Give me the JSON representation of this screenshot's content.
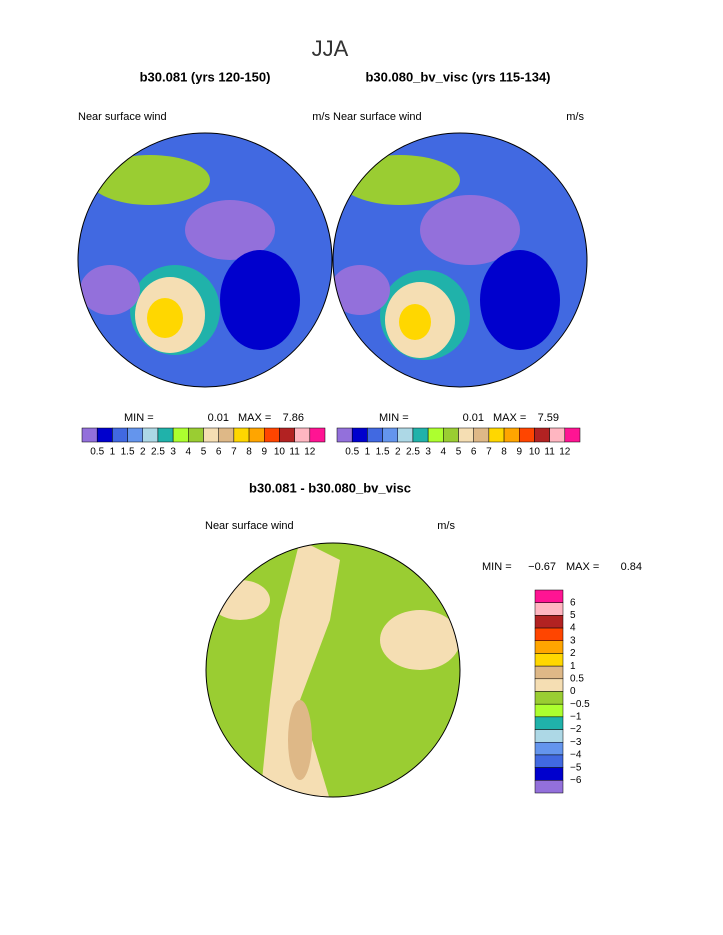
{
  "title": "JJA",
  "panels": [
    {
      "title": "b30.081 (yrs 120-150)",
      "left_label": "Near surface wind",
      "right_label": "m/s",
      "min_label": "MIN =",
      "min": "0.01",
      "max_label": "MAX =",
      "max": "7.86"
    },
    {
      "title": "b30.080_bv_visc (yrs 115-134)",
      "left_label": "Near surface wind",
      "right_label": "m/s",
      "min_label": "MIN =",
      "min": "0.01",
      "max_label": "MAX =",
      "max": "7.59"
    }
  ],
  "colorbar": {
    "labels": [
      "0.5",
      "1",
      "1.5",
      "2",
      "2.5",
      "3",
      "4",
      "5",
      "6",
      "7",
      "8",
      "9",
      "10",
      "11",
      "12"
    ],
    "colors": [
      "#9370db",
      "#0000cd",
      "#4169e1",
      "#6495ed",
      "#add8e6",
      "#20b2aa",
      "#adff2f",
      "#9acd32",
      "#f5deb3",
      "#deb887",
      "#ffd700",
      "#ffa500",
      "#ff4500",
      "#b22222",
      "#ffb6c1",
      "#ff1493"
    ]
  },
  "diff": {
    "title": "b30.081 - b30.080_bv_visc",
    "left_label": "Near surface wind",
    "right_label": "m/s",
    "min_label": "MIN =",
    "min": "−0.67",
    "max_label": "MAX =",
    "max": "0.84",
    "colorbar": {
      "labels": [
        "6",
        "5",
        "4",
        "3",
        "2",
        "1",
        "0.5",
        "0",
        "−0.5",
        "−1",
        "−2",
        "−3",
        "−4",
        "−5",
        "−6"
      ],
      "colors": [
        "#ff1493",
        "#ffb6c1",
        "#b22222",
        "#ff4500",
        "#ffa500",
        "#ffd700",
        "#deb887",
        "#f5deb3",
        "#9acd32",
        "#adff2f",
        "#20b2aa",
        "#add8e6",
        "#6495ed",
        "#4169e1",
        "#0000cd",
        "#9370db"
      ]
    }
  }
}
